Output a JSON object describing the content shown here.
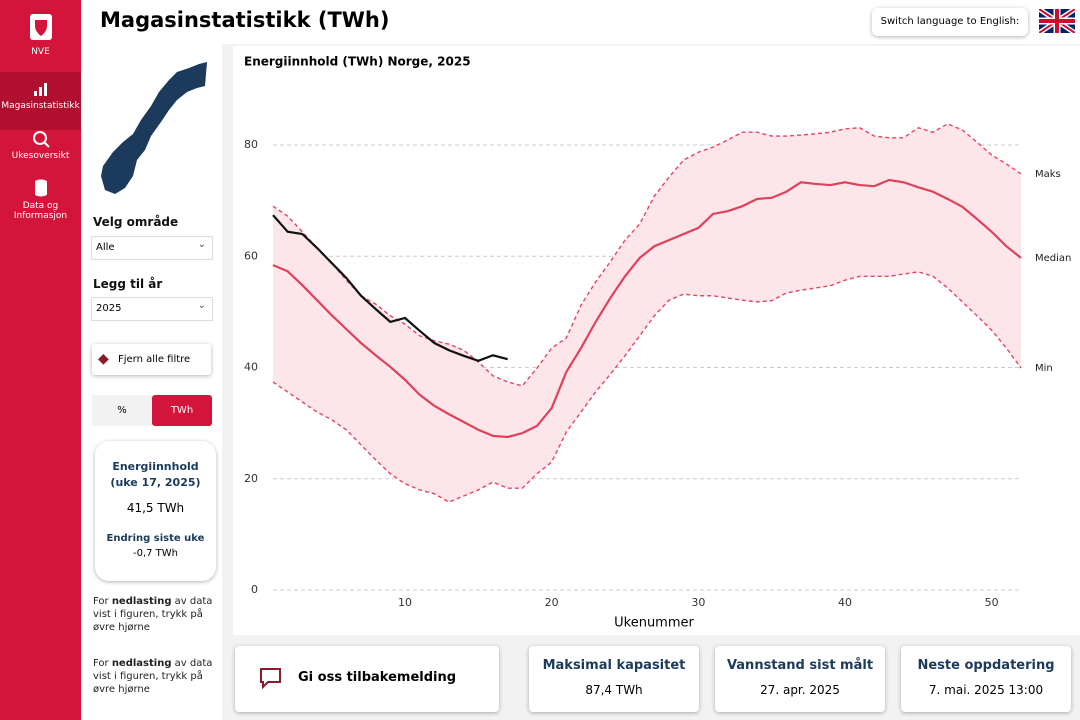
{
  "header": {
    "title": "Magasinstatistikk (TWh)",
    "language_button": "Switch language to English:"
  },
  "sidebar": {
    "logo": "NVE",
    "items": [
      "Magasinstatistikk",
      "Ukesoversikt",
      "Data og Informasjon"
    ]
  },
  "filters": {
    "area_label": "Velg område",
    "area_value": "Alle",
    "year_label": "Legg til år",
    "year_value": "2025",
    "clear": "Fjern alle filtre",
    "units": [
      "%",
      "TWh"
    ]
  },
  "card": {
    "title": "Energiinnhold (uke 17, 2025)",
    "value": "41,5 TWh",
    "change_label": "Endring siste uke",
    "change_value": "-0,7 TWh"
  },
  "notes": [
    {
      "before": "For ",
      "bold": "nedlasting",
      "after": " av data vist i figuren, trykk på øvre hjørne"
    },
    {
      "before": "For ",
      "bold": "nedlasting",
      "after": " av data vist i figuren, trykk på øvre hjørne"
    }
  ],
  "footer": {
    "feedback": "Gi oss tilbakemelding",
    "cards": [
      {
        "title": "Maksimal kapasitet",
        "value": "87,4 TWh"
      },
      {
        "title": "Vannstand sist målt",
        "value": "27. apr. 2025"
      },
      {
        "title": "Neste oppdatering",
        "value": "7. mai. 2025 13:00"
      }
    ]
  },
  "chart_data": {
    "type": "line",
    "title": "Energiinnhold (TWh) Norge, 2025",
    "xlabel": "Ukenummer",
    "x": [
      1,
      2,
      3,
      4,
      5,
      6,
      7,
      8,
      9,
      10,
      11,
      12,
      13,
      14,
      15,
      16,
      17,
      18,
      19,
      20,
      21,
      22,
      23,
      24,
      25,
      26,
      27,
      28,
      29,
      30,
      31,
      32,
      33,
      34,
      35,
      36,
      37,
      38,
      39,
      40,
      41,
      42,
      43,
      44,
      45,
      46,
      47,
      48,
      49,
      50,
      51,
      52
    ],
    "xlim": [
      1,
      52
    ],
    "xticks": [
      10,
      20,
      30,
      40,
      50
    ],
    "ylim": [
      0,
      88
    ],
    "yticks": [
      0,
      20,
      40,
      60,
      80
    ],
    "grid": true,
    "band_color": "#fde6ea",
    "series": [
      {
        "name": "Maks",
        "color": "#e8435f",
        "dash": true,
        "values": [
          69.0,
          67.2,
          64.4,
          61.5,
          58.8,
          55.7,
          52.9,
          51.4,
          49.3,
          47.8,
          45.7,
          44.8,
          44.2,
          43.1,
          41.0,
          38.5,
          37.4,
          36.7,
          39.9,
          43.5,
          45.3,
          51.2,
          55.4,
          59.0,
          62.9,
          65.8,
          70.8,
          74.2,
          77.3,
          78.7,
          79.6,
          80.9,
          82.3,
          82.3,
          81.6,
          81.6,
          81.8,
          82.0,
          82.3,
          82.9,
          83.1,
          81.6,
          81.3,
          81.3,
          83.1,
          82.3,
          83.8,
          82.7,
          80.5,
          78.2,
          76.6,
          74.8
        ]
      },
      {
        "name": "Median",
        "color": "#e0405a",
        "dash": false,
        "values": [
          58.4,
          57.3,
          54.8,
          52.1,
          49.4,
          46.9,
          44.4,
          42.2,
          40.1,
          37.8,
          35.1,
          33.1,
          31.6,
          30.2,
          28.8,
          27.7,
          27.5,
          28.2,
          29.5,
          32.7,
          39.2,
          43.5,
          48.2,
          52.5,
          56.4,
          59.7,
          61.8,
          62.9,
          64.0,
          65.1,
          67.6,
          68.1,
          69.0,
          70.3,
          70.5,
          71.6,
          73.3,
          73.0,
          72.8,
          73.3,
          72.8,
          72.6,
          73.7,
          73.3,
          72.4,
          71.6,
          70.3,
          68.9,
          66.7,
          64.4,
          61.8,
          59.7
        ]
      },
      {
        "name": "Min",
        "color": "#e8435f",
        "dash": true,
        "values": [
          37.4,
          35.6,
          33.8,
          32.0,
          30.6,
          28.8,
          26.1,
          23.4,
          20.9,
          19.1,
          18.0,
          17.3,
          15.8,
          16.9,
          18.0,
          19.4,
          18.3,
          18.3,
          20.9,
          23.0,
          28.4,
          32.0,
          35.6,
          38.8,
          42.1,
          45.7,
          49.3,
          52.1,
          53.2,
          52.9,
          52.9,
          52.5,
          52.1,
          51.8,
          52.0,
          53.4,
          53.9,
          54.3,
          54.7,
          55.7,
          56.4,
          56.4,
          56.4,
          56.8,
          57.2,
          56.4,
          54.3,
          51.8,
          49.3,
          46.7,
          43.5,
          39.9
        ]
      },
      {
        "color": "#111111",
        "dash": false,
        "values": [
          67.4,
          64.4,
          64.0,
          61.5,
          58.8,
          56.1,
          52.9,
          50.5,
          48.2,
          48.9,
          46.6,
          44.4,
          43.1,
          42.1,
          41.2,
          42.2,
          41.5,
          null,
          null,
          null,
          null,
          null,
          null,
          null,
          null,
          null,
          null,
          null,
          null,
          null,
          null,
          null,
          null,
          null,
          null,
          null,
          null,
          null,
          null,
          null,
          null,
          null,
          null,
          null,
          null,
          null,
          null,
          null,
          null,
          null,
          null,
          null
        ]
      }
    ]
  }
}
